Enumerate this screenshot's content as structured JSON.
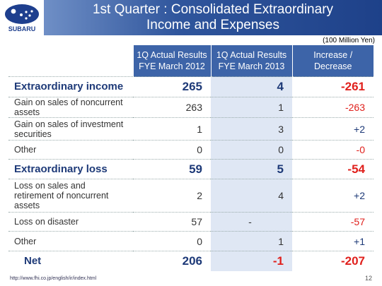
{
  "header": {
    "logo": "SUBARU",
    "title": "1st Quarter : Consolidated Extraordinary\nIncome and Expenses"
  },
  "unit": "(100 Million Yen)",
  "table": {
    "columns": [
      "1Q Actual Results\nFYE March 2012",
      "1Q Actual Results\nFYE March 2013",
      "Increase /\nDecrease"
    ],
    "rows": [
      {
        "label": "Extraordinary income",
        "values": [
          265,
          4,
          -261
        ]
      },
      {
        "label": "Gain on sales of noncurrent assets",
        "values": [
          263,
          1,
          -263
        ]
      },
      {
        "label": "Gain on sales of investment securities",
        "values": [
          1,
          3,
          "+2"
        ]
      },
      {
        "label": "Other",
        "values": [
          0,
          0,
          "-0"
        ]
      },
      {
        "label": "Extraordinary loss",
        "values": [
          59,
          5,
          -54
        ]
      },
      {
        "label": "Loss on sales and retirement of noncurrent assets",
        "values": [
          2,
          4,
          "+2"
        ]
      },
      {
        "label": "Loss on disaster",
        "values": [
          57,
          "-",
          -57
        ]
      },
      {
        "label": "Other",
        "values": [
          0,
          1,
          "+1"
        ]
      },
      {
        "label": "Net",
        "values": [
          206,
          -1,
          -207
        ]
      }
    ]
  },
  "footer": {
    "url": "http://www.fhi.co.jp/english/ir/index.html",
    "page": "12"
  }
}
